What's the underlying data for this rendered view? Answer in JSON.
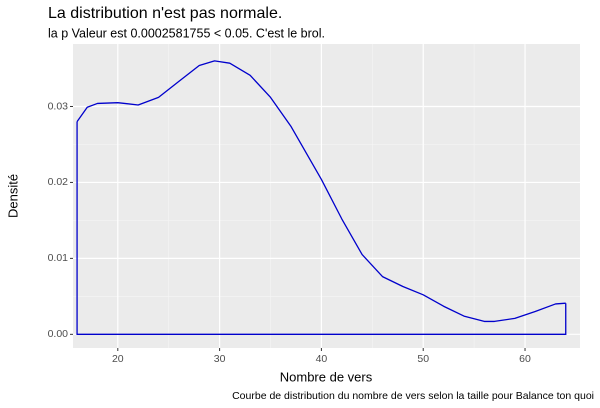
{
  "chart_data": {
    "type": "density",
    "title": "La distribution n'est pas normale.",
    "subtitle": "la p Valeur est  0.0002581755  < 0.05. C'est le brol.",
    "x_label": "Nombre de vers",
    "y_label": "Densité",
    "caption": "Courbe de distribution du nombre de vers selon la taille pour  Balance ton quoi",
    "x": [
      16,
      17,
      18,
      20,
      22,
      24,
      26,
      28,
      29.5,
      31,
      33,
      35,
      37,
      40,
      42,
      44,
      46,
      48,
      50,
      52,
      54,
      56,
      57,
      59,
      61,
      63,
      64
    ],
    "values": [
      0.028,
      0.0299,
      0.0304,
      0.0305,
      0.0302,
      0.0312,
      0.0333,
      0.0354,
      0.036,
      0.0357,
      0.0341,
      0.0312,
      0.0274,
      0.0204,
      0.0152,
      0.0105,
      0.0076,
      0.0063,
      0.0052,
      0.0037,
      0.0024,
      0.0017,
      0.0017,
      0.0021,
      0.003,
      0.004,
      0.0041
    ],
    "color": "#0000cc",
    "xlim": [
      15.6,
      65.4
    ],
    "ylim": [
      -0.0018,
      0.0377
    ],
    "xticks": [
      20,
      30,
      40,
      50,
      60
    ],
    "yticks": [
      {
        "value": 0,
        "label": "0.00"
      },
      {
        "value": 0.01,
        "label": "0.01"
      },
      {
        "value": 0.02,
        "label": "0.02"
      },
      {
        "value": 0.03,
        "label": "0.03"
      }
    ],
    "grid": true
  }
}
